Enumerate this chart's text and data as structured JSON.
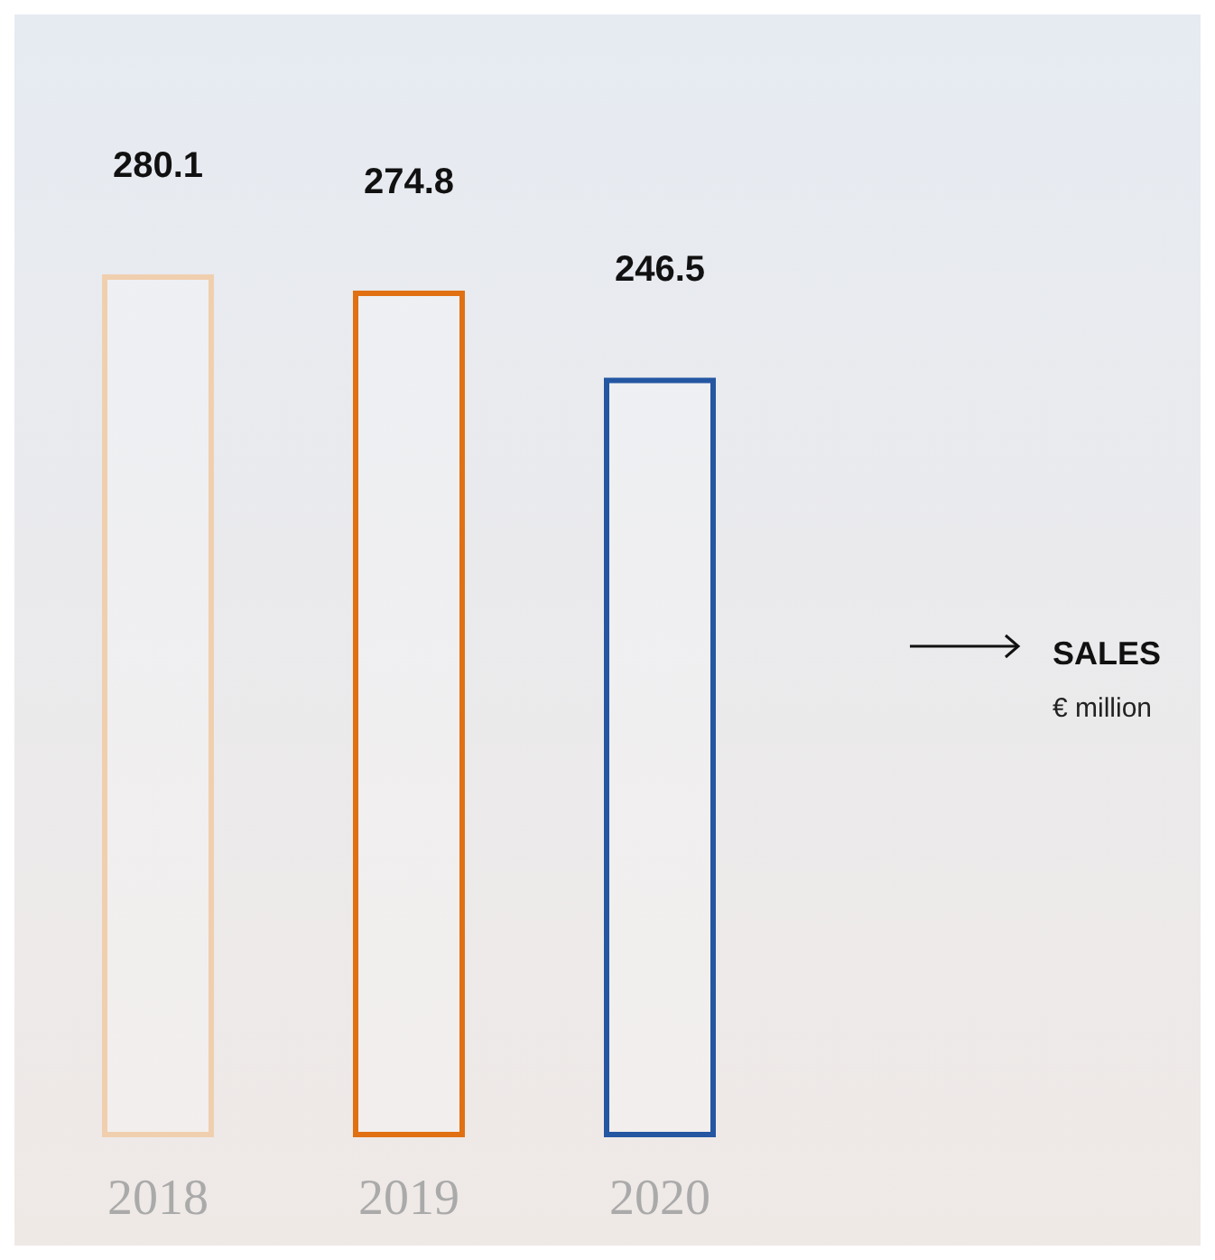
{
  "chart_data": {
    "type": "bar",
    "title": "SALES",
    "subtitle": "€ million",
    "categories": [
      "2018",
      "2019",
      "2020"
    ],
    "values": [
      280.1,
      274.8,
      246.5
    ],
    "colors": [
      "#f0cfae",
      "#e07012",
      "#2456a2"
    ],
    "data_labels": true
  }
}
